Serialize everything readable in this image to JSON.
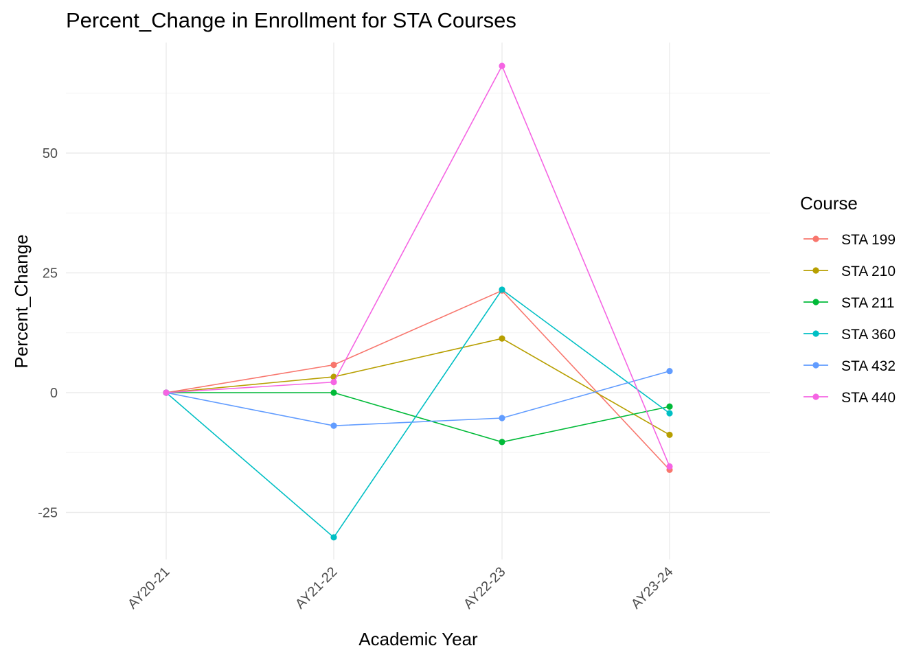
{
  "chart_data": {
    "type": "line",
    "title": "Percent_Change in Enrollment for STA Courses",
    "xlabel": "Academic Year",
    "ylabel": "Percent_Change",
    "categories": [
      "AY20-21",
      "AY21-22",
      "AY22-23",
      "AY23-24"
    ],
    "ylim": [
      -35,
      69
    ],
    "yticks": [
      -25,
      0,
      25,
      50
    ],
    "grid": true,
    "legend": {
      "title": "Course",
      "position": "right"
    },
    "series": [
      {
        "name": "STA 199",
        "color": "#F8766D",
        "values": [
          0,
          5.8,
          21.3,
          -16.1
        ]
      },
      {
        "name": "STA 210",
        "color": "#B79F00",
        "values": [
          0,
          3.3,
          11.3,
          -8.8
        ]
      },
      {
        "name": "STA 211",
        "color": "#00BA38",
        "values": [
          0,
          0,
          -10.3,
          -2.9
        ]
      },
      {
        "name": "STA 360",
        "color": "#00BFC4",
        "values": [
          0,
          -30.2,
          21.5,
          -4.3
        ]
      },
      {
        "name": "STA 432",
        "color": "#619CFF",
        "values": [
          0,
          -6.9,
          -5.3,
          4.5
        ]
      },
      {
        "name": "STA 440",
        "color": "#F564E3",
        "values": [
          0,
          2.2,
          68.2,
          -15.4
        ]
      }
    ]
  }
}
